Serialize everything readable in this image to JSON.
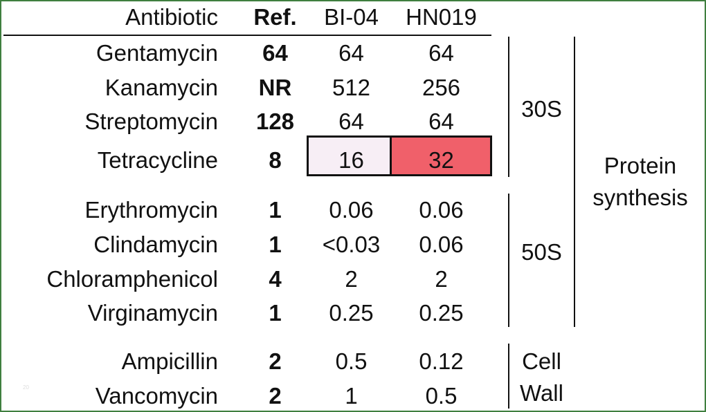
{
  "header": {
    "antibiotic": "Antibiotic",
    "ref": "Ref.",
    "bi04": "BI-04",
    "hn019": "HN019"
  },
  "rows": [
    {
      "name": "Gentamycin",
      "ref": "64",
      "bi04": "64",
      "hn019": "64"
    },
    {
      "name": "Kanamycin",
      "ref": "NR",
      "bi04": "512",
      "hn019": "256"
    },
    {
      "name": "Streptomycin",
      "ref": "128",
      "bi04": "64",
      "hn019": "64"
    },
    {
      "name": "Tetracycline",
      "ref": "8",
      "bi04": "16",
      "hn019": "32"
    },
    {
      "name": "Erythromycin",
      "ref": "1",
      "bi04": "0.06",
      "hn019": "0.06"
    },
    {
      "name": "Clindamycin",
      "ref": "1",
      "bi04": "<0.03",
      "hn019": "0.06"
    },
    {
      "name": "Chloramphenicol",
      "ref": "4",
      "bi04": "2",
      "hn019": "2"
    },
    {
      "name": "Virginamycin",
      "ref": "1",
      "bi04": "0.25",
      "hn019": "0.25"
    },
    {
      "name": "Ampicillin",
      "ref": "2",
      "bi04": "0.5",
      "hn019": "0.12"
    },
    {
      "name": "Vancomycin",
      "ref": "2",
      "bi04": "1",
      "hn019": "0.5"
    }
  ],
  "groups": {
    "g30s": "30S",
    "g50s": "50S",
    "protein_line1": "Protein",
    "protein_line2": "synthesis",
    "cell_line1": "Cell",
    "cell_line2": "Wall"
  },
  "highlight_colors": {
    "bi04": "#f7eef5",
    "hn019": "#f0606a"
  },
  "frame_color": "#3f7f3f",
  "footmark": "20",
  "chart_data": {
    "type": "table",
    "columns": [
      "Antibiotic",
      "Ref.",
      "BI-04",
      "HN019"
    ],
    "rows": [
      [
        "Gentamycin",
        "64",
        "64",
        "64"
      ],
      [
        "Kanamycin",
        "NR",
        "512",
        "256"
      ],
      [
        "Streptomycin",
        "128",
        "64",
        "64"
      ],
      [
        "Tetracycline",
        "8",
        "16",
        "32"
      ],
      [
        "Erythromycin",
        "1",
        "0.06",
        "0.06"
      ],
      [
        "Clindamycin",
        "1",
        "<0.03",
        "0.06"
      ],
      [
        "Chloramphenicol",
        "4",
        "2",
        "2"
      ],
      [
        "Virginamycin",
        "1",
        "0.25",
        "0.25"
      ],
      [
        "Ampicillin",
        "2",
        "0.5",
        "0.12"
      ],
      [
        "Vancomycin",
        "2",
        "1",
        "0.5"
      ]
    ],
    "groups": [
      {
        "label": "30S",
        "rows": [
          "Gentamycin",
          "Kanamycin",
          "Streptomycin",
          "Tetracycline"
        ]
      },
      {
        "label": "50S",
        "rows": [
          "Erythromycin",
          "Clindamycin",
          "Chloramphenicol",
          "Virginamycin"
        ]
      },
      {
        "label": "Protein synthesis",
        "rows": [
          "Gentamycin",
          "Kanamycin",
          "Streptomycin",
          "Tetracycline",
          "Erythromycin",
          "Clindamycin",
          "Chloramphenicol",
          "Virginamycin"
        ]
      },
      {
        "label": "Cell Wall",
        "rows": [
          "Ampicillin",
          "Vancomycin"
        ]
      }
    ],
    "highlighted_cells": [
      {
        "row": "Tetracycline",
        "column": "BI-04",
        "color": "#f7eef5"
      },
      {
        "row": "Tetracycline",
        "column": "HN019",
        "color": "#f0606a"
      }
    ]
  }
}
